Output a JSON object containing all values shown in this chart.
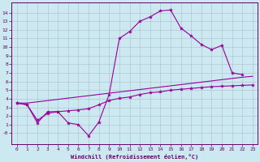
{
  "bg_color": "#cce8f0",
  "line_color": "#990099",
  "grid_color": "#aabbcc",
  "tick_color": "#660066",
  "spine_color": "#660066",
  "xlim": [
    -0.5,
    23.5
  ],
  "ylim": [
    -1.3,
    15.2
  ],
  "xticks": [
    0,
    1,
    2,
    3,
    4,
    5,
    6,
    7,
    8,
    9,
    10,
    11,
    12,
    13,
    14,
    15,
    16,
    17,
    18,
    19,
    20,
    21,
    22,
    23
  ],
  "yticks": [
    0,
    1,
    2,
    3,
    4,
    5,
    6,
    7,
    8,
    9,
    10,
    11,
    12,
    13,
    14
  ],
  "ytick_labels": [
    "-0",
    "1",
    "2",
    "3",
    "4",
    "5",
    "6",
    "7",
    "8",
    "9",
    "10",
    "11",
    "12",
    "13",
    "14"
  ],
  "xlabel": "Windchill (Refroidissement éolien,°C)",
  "curve1_x": [
    0,
    1,
    2,
    3,
    4,
    5,
    6,
    7,
    8,
    9,
    10,
    11,
    12,
    13,
    14,
    15,
    16,
    17,
    18,
    19,
    20,
    21,
    22
  ],
  "curve1_y": [
    3.5,
    3.3,
    1.2,
    2.5,
    2.5,
    1.2,
    1.0,
    -0.3,
    1.3,
    4.5,
    11.0,
    11.8,
    13.0,
    13.5,
    14.2,
    14.3,
    12.2,
    11.3,
    10.3,
    9.7,
    10.2,
    7.0,
    6.8
  ],
  "curve2_x": [
    0,
    1,
    22,
    23
  ],
  "curve2_y": [
    3.5,
    3.5,
    6.5,
    6.6
  ],
  "curve3_x": [
    0,
    1,
    2,
    3,
    4,
    5,
    6,
    7,
    8,
    9,
    10,
    11,
    12,
    13,
    14,
    15,
    16,
    17,
    18,
    19,
    20,
    21,
    22,
    23
  ],
  "curve3_y": [
    3.5,
    3.3,
    1.5,
    2.3,
    2.5,
    2.6,
    2.7,
    2.85,
    3.3,
    3.8,
    4.05,
    4.2,
    4.5,
    4.7,
    4.8,
    5.0,
    5.1,
    5.2,
    5.3,
    5.4,
    5.45,
    5.5,
    5.55,
    5.6
  ],
  "tick_fontsize": 4.5,
  "xlabel_fontsize": 5.0
}
